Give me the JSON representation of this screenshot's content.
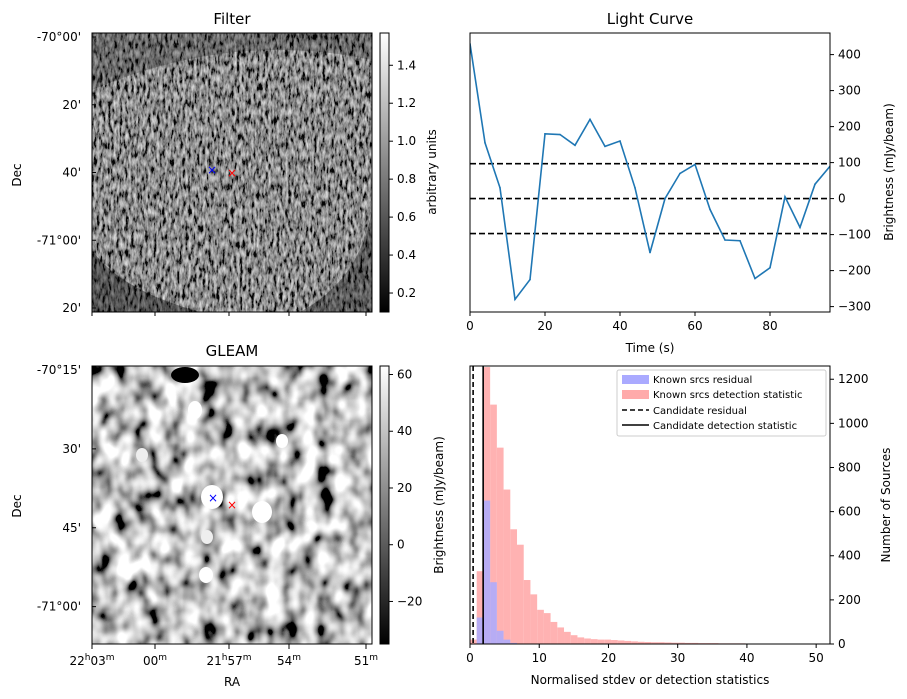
{
  "panels": {
    "filter": {
      "title": "Filter",
      "ylabel": "Dec",
      "colorbar_label": "arbitrary units",
      "colorbar_range": [
        0.1,
        1.57
      ],
      "colorbar_ticks": [
        0.2,
        0.4,
        0.6,
        0.8,
        1.0,
        1.2,
        1.4
      ],
      "colorbar_tick_labels": [
        "0.2",
        "0.4",
        "0.6",
        "0.8",
        "1.0",
        "1.2",
        "1.4"
      ],
      "dec_ticks": [
        "-70°00'",
        "20'",
        "40'",
        "-71°00'",
        "20'"
      ]
    },
    "gleam": {
      "title": "GLEAM",
      "ylabel": "Dec",
      "xlabel": "RA",
      "colorbar_range": [
        -35,
        63
      ],
      "colorbar_ticks": [
        -20,
        0,
        20,
        40,
        60
      ],
      "colorbar_tick_labels": [
        "−20",
        "0",
        "20",
        "40",
        "60"
      ],
      "dec_ticks": [
        "-70°15'",
        "30'",
        "45'",
        "-71°00'"
      ],
      "ra_ticks": [
        {
          "h": "22",
          "hs": "h",
          "m": "03",
          "ms": "m"
        },
        {
          "h": "",
          "hs": "",
          "m": "00",
          "ms": "m"
        },
        {
          "h": "21",
          "hs": "h",
          "m": "57",
          "ms": "m"
        },
        {
          "h": "",
          "hs": "",
          "m": "54",
          "ms": "m"
        },
        {
          "h": "",
          "hs": "",
          "m": "51",
          "ms": "m"
        }
      ]
    },
    "markers": {
      "blue": "#0000ff",
      "red": "#ff0000"
    }
  },
  "chart_data": [
    {
      "type": "line",
      "title": "Light Curve",
      "xlabel": "Time (s)",
      "ylabel": "Brightness (mJy/beam)",
      "xlim": [
        0,
        96
      ],
      "ylim": [
        -315,
        460
      ],
      "xticks": [
        0,
        20,
        40,
        60,
        80
      ],
      "yticks": [
        -300,
        -200,
        -100,
        0,
        100,
        200,
        300,
        400
      ],
      "color": "#1f77b4",
      "x": [
        0,
        4,
        8,
        12,
        16,
        20,
        24,
        28,
        32,
        36,
        40,
        44,
        48,
        52,
        56,
        60,
        64,
        68,
        72,
        76,
        80,
        84,
        88,
        92,
        96
      ],
      "y": [
        430,
        155,
        30,
        -280,
        -225,
        180,
        178,
        148,
        220,
        145,
        160,
        30,
        -150,
        0,
        70,
        95,
        -30,
        -115,
        -117,
        -222,
        -192,
        5,
        -80,
        40,
        90
      ],
      "hlines": [
        97,
        0,
        -97
      ]
    },
    {
      "type": "bar",
      "xlabel": "Normalised stdev or detection statistics",
      "ylabel_left": "Brightness (mJy/beam)",
      "ylabel_right": "Number of Sources",
      "xlim": [
        0,
        52
      ],
      "ylim": [
        0,
        1260
      ],
      "xticks": [
        0,
        10,
        20,
        30,
        40,
        50
      ],
      "yticks": [
        0,
        200,
        400,
        600,
        800,
        1000,
        1200
      ],
      "bin_width": 0.97,
      "series": [
        {
          "name": "Known srcs residual",
          "color": "#aaaaff",
          "values": [
            0,
            120,
            650,
            280,
            60,
            20,
            5,
            0,
            0,
            0
          ]
        },
        {
          "name": "Known srcs detection statistic",
          "color": "#ffaaaa",
          "values": [
            20,
            330,
            1255,
            1085,
            890,
            700,
            520,
            450,
            290,
            225,
            155,
            140,
            100,
            75,
            55,
            40,
            30,
            25,
            22,
            20,
            20,
            18,
            16,
            14,
            12,
            10,
            9,
            8,
            8,
            7,
            6,
            6,
            5,
            5,
            4,
            4,
            4,
            3,
            3,
            3,
            3,
            2,
            2,
            2,
            2,
            2,
            2,
            2,
            1,
            1,
            1
          ]
        }
      ],
      "candidate_residual": 0.45,
      "candidate_detection_statistic": 1.9,
      "legend": [
        "Known srcs residual",
        "Known srcs detection statistic",
        "Candidate residual",
        "Candidate detection statistic"
      ]
    }
  ]
}
